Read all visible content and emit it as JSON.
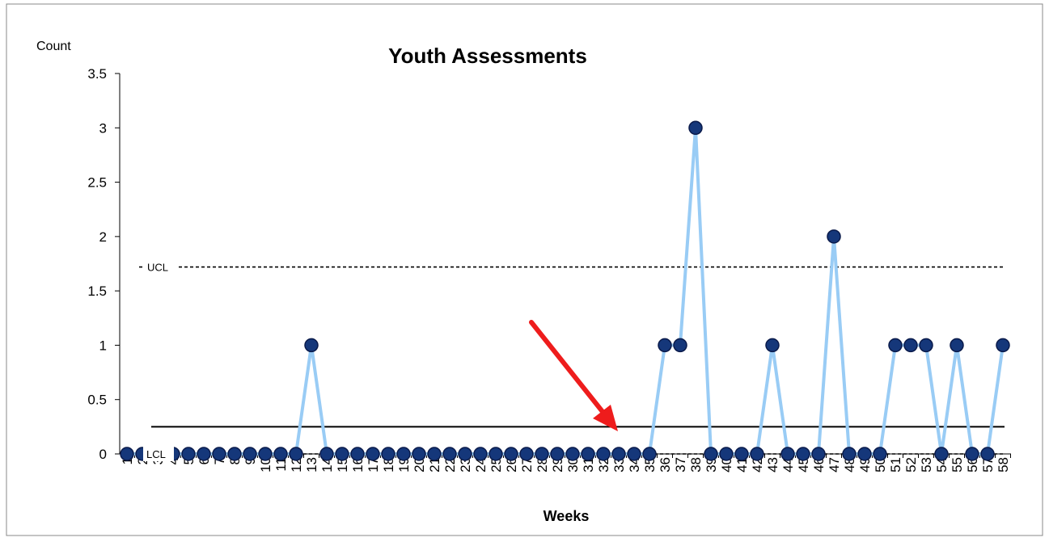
{
  "chart_data": {
    "type": "line",
    "title": "Youth Assessments",
    "y_label": "Count",
    "x_label": "Weeks",
    "categories": [
      "1",
      "2",
      "3",
      "4",
      "5",
      "6",
      "7",
      "8",
      "9",
      "10",
      "11",
      "12",
      "13",
      "14",
      "15",
      "16",
      "17",
      "18",
      "19",
      "20",
      "21",
      "22",
      "23",
      "24",
      "25",
      "26",
      "27",
      "28",
      "29",
      "30",
      "31",
      "32",
      "33",
      "34",
      "35",
      "36",
      "37",
      "38",
      "39",
      "40",
      "41",
      "42",
      "43",
      "44",
      "45",
      "46",
      "47",
      "48",
      "49",
      "50",
      "51",
      "52",
      "53",
      "54",
      "55",
      "56",
      "57",
      "58"
    ],
    "series": [
      {
        "name": "Count",
        "color": "#99ccf5",
        "marker_color": "#15377a",
        "values": [
          0,
          0,
          0,
          0,
          0,
          0,
          0,
          0,
          0,
          0,
          0,
          0,
          1,
          0,
          0,
          0,
          0,
          0,
          0,
          0,
          0,
          0,
          0,
          0,
          0,
          0,
          0,
          0,
          0,
          0,
          0,
          0,
          0,
          0,
          0,
          1,
          1,
          3,
          0,
          0,
          0,
          0,
          1,
          0,
          0,
          0,
          2,
          0,
          0,
          0,
          1,
          1,
          1,
          0,
          1,
          0,
          0,
          1
        ]
      }
    ],
    "ucl": {
      "label": "UCL",
      "value": 1.72
    },
    "lcl": {
      "label": "LCL",
      "value": 0
    },
    "center_line": 0.25,
    "ylim": [
      0,
      3.5
    ],
    "yticks": [
      0,
      0.5,
      1,
      1.5,
      2,
      2.5,
      3,
      3.5
    ]
  }
}
